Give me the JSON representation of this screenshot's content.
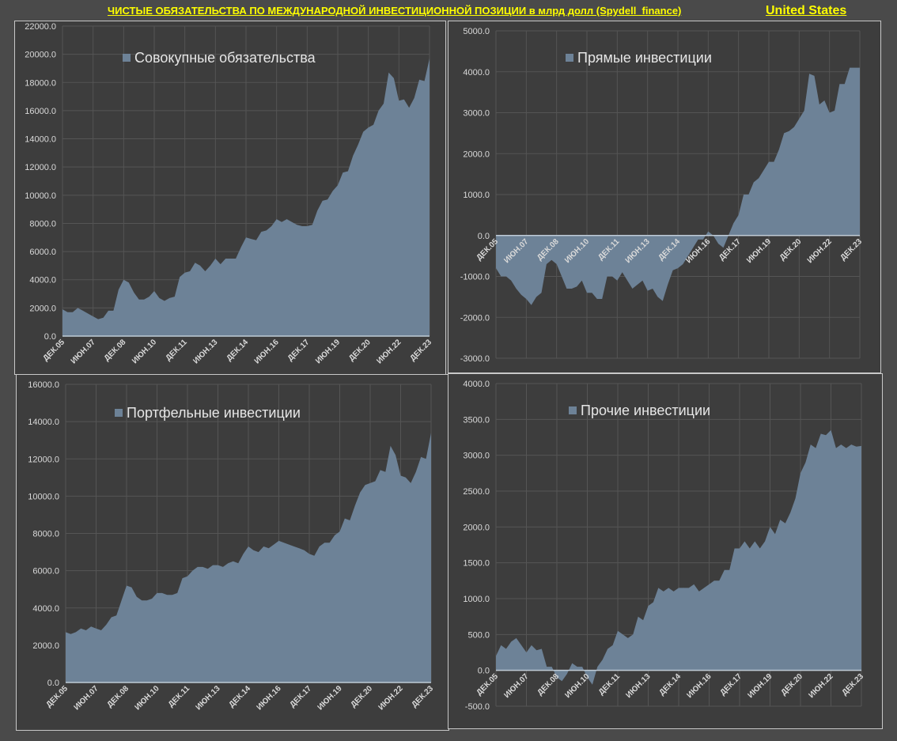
{
  "header": {
    "title": "ЧИСТЫЕ ОБЯЗАТЕЛЬСТВА ПО МЕЖДУНАРОДНОЙ ИНВЕСТИЦИОННОЙ ПОЗИЦИИ в млрд долл (Spydell_finance)",
    "country": "United States"
  },
  "colors": {
    "fill": "#6d8297",
    "line": "#8ea3b8",
    "grid": "#555555",
    "text": "#d9d9d9"
  },
  "chart_data": [
    {
      "type": "area",
      "title": "Совокупные обязательства",
      "ylim": [
        0,
        22000
      ],
      "yticks": [
        0,
        2000,
        4000,
        6000,
        8000,
        10000,
        12000,
        14000,
        16000,
        18000,
        20000,
        22000
      ],
      "xtick_labels": [
        "ДЕК.05",
        "ИЮН.07",
        "ДЕК.08",
        "ИЮН.10",
        "ДЕК.11",
        "ИЮН.13",
        "ДЕК.14",
        "ИЮН.16",
        "ДЕК.17",
        "ИЮН.19",
        "ДЕК.20",
        "ИЮН.22",
        "ДЕК.23"
      ],
      "values": [
        1900,
        1700,
        1700,
        2000,
        1800,
        1600,
        1400,
        1200,
        1300,
        1800,
        1800,
        3300,
        4000,
        3800,
        3100,
        2600,
        2600,
        2800,
        3200,
        2700,
        2500,
        2700,
        2800,
        4200,
        4500,
        4600,
        5200,
        5000,
        4600,
        5000,
        5500,
        5100,
        5500,
        5500,
        5500,
        6300,
        7000,
        6900,
        6800,
        7400,
        7500,
        7800,
        8300,
        8100,
        8300,
        8100,
        7900,
        7800,
        7800,
        7900,
        8900,
        9600,
        9700,
        10300,
        10700,
        11600,
        11700,
        12800,
        13600,
        14500,
        14800,
        15000,
        16000,
        16500,
        18700,
        18300,
        16700,
        16800,
        16200,
        16900,
        18200,
        18100,
        19700
      ]
    },
    {
      "type": "area",
      "title": "Прямые инвестиции",
      "ylim": [
        -3000,
        5000
      ],
      "yticks": [
        -3000,
        -2000,
        -1000,
        0,
        1000,
        2000,
        3000,
        4000,
        5000
      ],
      "xtick_labels": [
        "ДЕК.05",
        "ИЮН.07",
        "ДЕК.08",
        "ИЮН.10",
        "ДЕК.11",
        "ИЮН.13",
        "ДЕК.14",
        "ИЮН.16",
        "ДЕК.17",
        "ИЮН.19",
        "ДЕК.20",
        "ИЮН.22",
        "ДЕК.23"
      ],
      "values": [
        -800,
        -1000,
        -1000,
        -1100,
        -1300,
        -1450,
        -1550,
        -1700,
        -1500,
        -1400,
        -700,
        -600,
        -700,
        -1000,
        -1300,
        -1300,
        -1250,
        -1100,
        -1400,
        -1400,
        -1550,
        -1550,
        -1000,
        -1000,
        -1100,
        -900,
        -1100,
        -1300,
        -1200,
        -1100,
        -1350,
        -1300,
        -1500,
        -1600,
        -1200,
        -850,
        -800,
        -700,
        -500,
        -300,
        -100,
        -100,
        100,
        0,
        -200,
        -300,
        0,
        300,
        500,
        1000,
        1000,
        1300,
        1400,
        1600,
        1800,
        1800,
        2100,
        2500,
        2550,
        2650,
        2850,
        3050,
        3950,
        3900,
        3200,
        3300,
        3000,
        3050,
        3700,
        3700,
        4100,
        4100,
        4100
      ]
    },
    {
      "type": "area",
      "title": "Портфельные инвестиции",
      "ylim": [
        0,
        16000
      ],
      "yticks": [
        0,
        2000,
        4000,
        6000,
        8000,
        10000,
        12000,
        14000,
        16000
      ],
      "xtick_labels": [
        "ДЕК.05",
        "ИЮН.07",
        "ДЕК.08",
        "ИЮН.10",
        "ДЕК.11",
        "ИЮН.13",
        "ДЕК.14",
        "ИЮН.16",
        "ДЕК.17",
        "ИЮН.19",
        "ДЕК.20",
        "ИЮН.22",
        "ДЕК.23"
      ],
      "values": [
        2700,
        2600,
        2700,
        2900,
        2800,
        3000,
        2900,
        2800,
        3100,
        3500,
        3600,
        4400,
        5200,
        5100,
        4600,
        4400,
        4400,
        4500,
        4800,
        4800,
        4700,
        4700,
        4800,
        5600,
        5700,
        6000,
        6200,
        6200,
        6100,
        6300,
        6300,
        6200,
        6400,
        6500,
        6400,
        6900,
        7300,
        7100,
        7000,
        7300,
        7200,
        7400,
        7600,
        7500,
        7400,
        7300,
        7200,
        7100,
        6900,
        6800,
        7300,
        7500,
        7500,
        7900,
        8100,
        8800,
        8700,
        9500,
        10200,
        10600,
        10700,
        10800,
        11400,
        11300,
        12700,
        12200,
        11100,
        11000,
        10700,
        11300,
        12100,
        12000,
        13400
      ]
    },
    {
      "type": "area",
      "title": "Прочие инвестиции",
      "ylim": [
        -500,
        4000
      ],
      "yticks": [
        -500,
        0,
        500,
        1000,
        1500,
        2000,
        2500,
        3000,
        3500,
        4000
      ],
      "xtick_labels": [
        "ДЕК.05",
        "ИЮН.07",
        "ДЕК.08",
        "ИЮН.10",
        "ДЕК.11",
        "ИЮН.13",
        "ДЕК.14",
        "ИЮН.16",
        "ДЕК.17",
        "ИЮН.19",
        "ДЕК.20",
        "ИЮН.22",
        "ДЕК.23"
      ],
      "values": [
        200,
        350,
        300,
        400,
        450,
        350,
        250,
        350,
        280,
        300,
        50,
        50,
        -100,
        -150,
        -50,
        100,
        50,
        50,
        -100,
        -200,
        50,
        150,
        300,
        350,
        550,
        500,
        450,
        500,
        750,
        700,
        900,
        950,
        1150,
        1100,
        1150,
        1100,
        1150,
        1150,
        1150,
        1200,
        1100,
        1150,
        1200,
        1250,
        1250,
        1400,
        1400,
        1700,
        1700,
        1800,
        1700,
        1800,
        1700,
        1800,
        2000,
        1900,
        2100,
        2050,
        2200,
        2400,
        2750,
        2900,
        3150,
        3100,
        3300,
        3280,
        3350,
        3100,
        3150,
        3100,
        3150,
        3120,
        3130
      ]
    }
  ]
}
